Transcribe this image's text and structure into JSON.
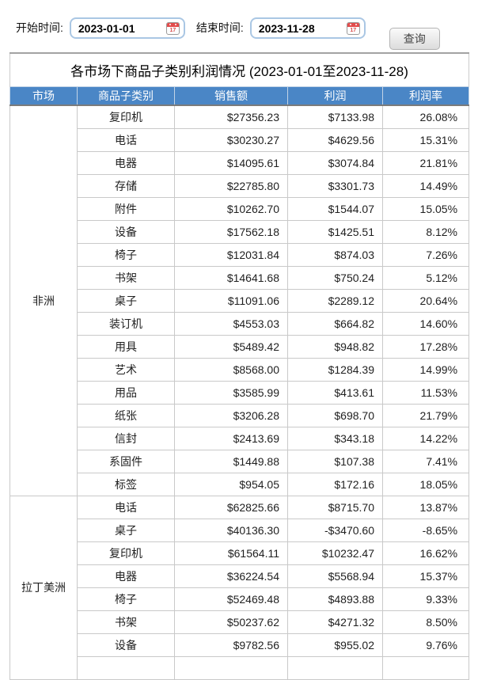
{
  "filter": {
    "start_label": "开始时间:",
    "start_value": "2023-01-01",
    "end_label": "结束时间:",
    "end_value": "2023-11-28",
    "calendar_day": "17",
    "query_button": "查询"
  },
  "table": {
    "title": "各市场下商品子类别利润情况 (2023-01-01至2023-11-28)",
    "columns": [
      "市场",
      "商品子类别",
      "销售额",
      "利润",
      "利润率"
    ],
    "sections": [
      {
        "market": "非洲",
        "rows": [
          [
            "复印机",
            "$27356.23",
            "$7133.98",
            "26.08%"
          ],
          [
            "电话",
            "$30230.27",
            "$4629.56",
            "15.31%"
          ],
          [
            "电器",
            "$14095.61",
            "$3074.84",
            "21.81%"
          ],
          [
            "存储",
            "$22785.80",
            "$3301.73",
            "14.49%"
          ],
          [
            "附件",
            "$10262.70",
            "$1544.07",
            "15.05%"
          ],
          [
            "设备",
            "$17562.18",
            "$1425.51",
            "8.12%"
          ],
          [
            "椅子",
            "$12031.84",
            "$874.03",
            "7.26%"
          ],
          [
            "书架",
            "$14641.68",
            "$750.24",
            "5.12%"
          ],
          [
            "桌子",
            "$11091.06",
            "$2289.12",
            "20.64%"
          ],
          [
            "装订机",
            "$4553.03",
            "$664.82",
            "14.60%"
          ],
          [
            "用具",
            "$5489.42",
            "$948.82",
            "17.28%"
          ],
          [
            "艺术",
            "$8568.00",
            "$1284.39",
            "14.99%"
          ],
          [
            "用品",
            "$3585.99",
            "$413.61",
            "11.53%"
          ],
          [
            "纸张",
            "$3206.28",
            "$698.70",
            "21.79%"
          ],
          [
            "信封",
            "$2413.69",
            "$343.18",
            "14.22%"
          ],
          [
            "系固件",
            "$1449.88",
            "$107.38",
            "7.41%"
          ],
          [
            "标签",
            "$954.05",
            "$172.16",
            "18.05%"
          ]
        ]
      },
      {
        "market": "拉丁美洲",
        "clipped": true,
        "rows": [
          [
            "电话",
            "$62825.66",
            "$8715.70",
            "13.87%"
          ],
          [
            "桌子",
            "$40136.30",
            "-$3470.60",
            "-8.65%"
          ],
          [
            "复印机",
            "$61564.11",
            "$10232.47",
            "16.62%"
          ],
          [
            "电器",
            "$36224.54",
            "$5568.94",
            "15.37%"
          ],
          [
            "椅子",
            "$52469.48",
            "$4893.88",
            "9.33%"
          ],
          [
            "书架",
            "$50237.62",
            "$4271.32",
            "8.50%"
          ],
          [
            "设备",
            "$9782.56",
            "$955.02",
            "9.76%"
          ]
        ]
      }
    ]
  },
  "colors": {
    "header_bg": "#4a86c6",
    "header_text": "#ffffff",
    "header_underline": "#7b7b7b",
    "cell_border": "#c9c9c9",
    "date_input_border": "#aac7e4",
    "calendar_red": "#e24c4c"
  }
}
